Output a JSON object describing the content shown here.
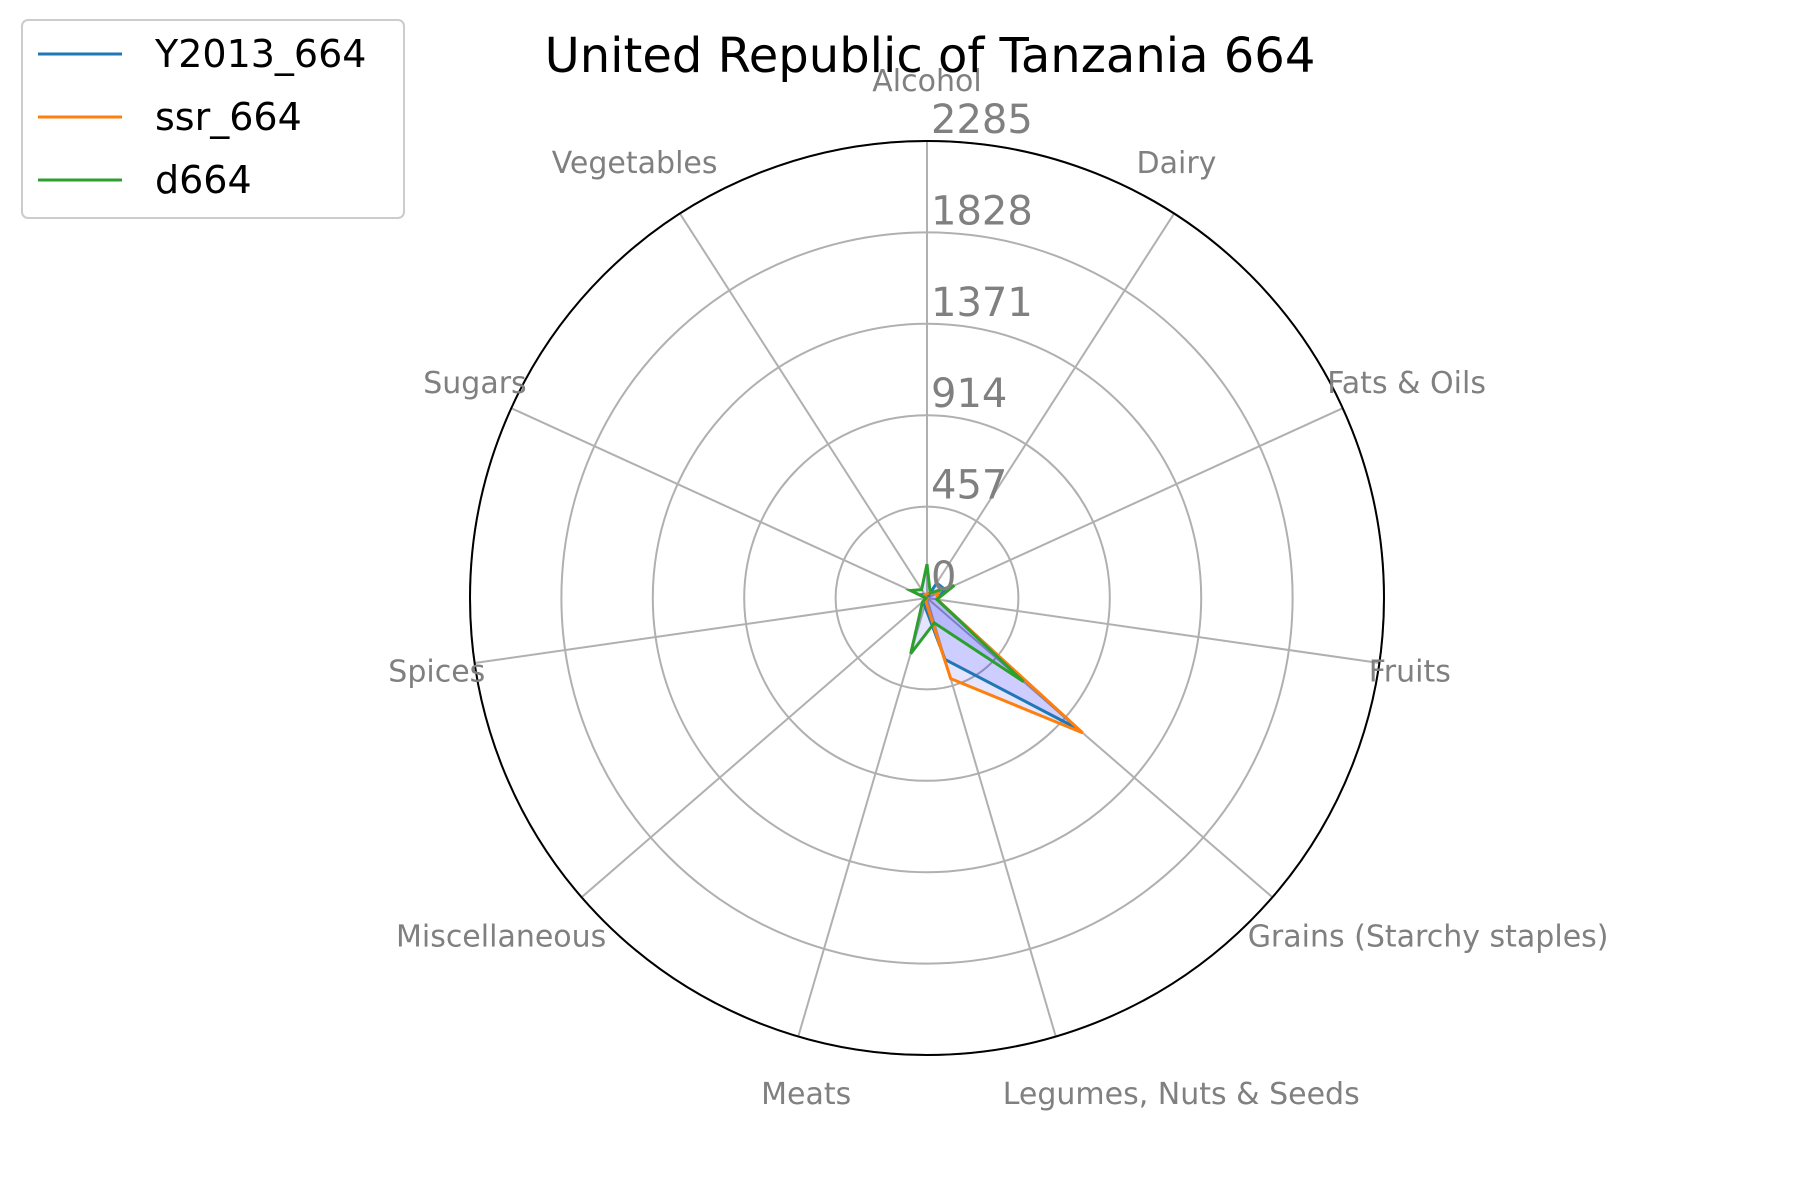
{
  "chart_data": {
    "type": "radar",
    "title": "United Republic of Tanzania 664",
    "categories": [
      "Alcohol",
      "Dairy",
      "Fats & Oils",
      "Fruits",
      "Grains (Starchy staples)",
      "Legumes, Nuts & Seeds",
      "Meats",
      "Miscellaneous",
      "Spices",
      "Sugars",
      "Vegetables"
    ],
    "rlim": [
      0,
      2285
    ],
    "rticks": [
      0,
      457,
      914,
      1371,
      1828,
      2285
    ],
    "rtick_labels": [
      "0",
      "457",
      "914",
      "1371",
      "1828",
      "2285"
    ],
    "series": [
      {
        "name": "Y2013_664",
        "color": "#1f77b4",
        "values": [
          0,
          90,
          100,
          50,
          1000,
          320,
          40,
          5,
          0,
          40,
          20
        ]
      },
      {
        "name": "ssr_664",
        "color": "#ff7f0e",
        "values": [
          20,
          30,
          60,
          50,
          1030,
          420,
          20,
          5,
          0,
          20,
          20
        ]
      },
      {
        "name": "d664",
        "color": "#2ca02c",
        "values": [
          170,
          30,
          150,
          50,
          640,
          130,
          290,
          30,
          5,
          90,
          50
        ]
      }
    ],
    "fill_color": "#0000ff",
    "legend_position": "top-left",
    "grid": true
  }
}
